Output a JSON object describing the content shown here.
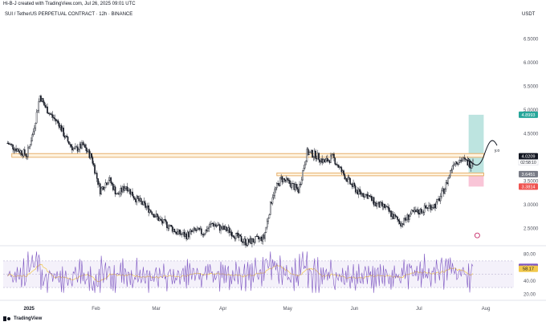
{
  "header": {
    "created_by": "Hi-B-J created with TradingView.com, Jul 26, 2025 09:01 UTC",
    "symbol": "SUI / TetherUS PERPETUAL CONTRACT · 12h · BINANCE",
    "currency": "USDT"
  },
  "footer": {
    "brand": "TradingView"
  },
  "colors": {
    "candle": "#131722",
    "zone_fill": "#fff3e0",
    "zone_border": "#e0a050",
    "target_fill": "#b2dfdb",
    "stop_fill": "#f8bbd0",
    "rsi_line": "#7e57c2",
    "rsi_ma": "#f2c94c",
    "rsi_band": "#ede7f6",
    "price_badge": "#131722",
    "target_badge": "#26a69a",
    "stop_badge": "#ef5350",
    "entry_badge": "#787b86"
  },
  "chart_data": [
    {
      "type": "candlestick",
      "title": "SUI / TetherUS PERPETUAL CONTRACT · 12h · BINANCE",
      "y_unit": "USDT",
      "ylim": [
        2.2,
        6.9
      ],
      "y_ticks": [
        "6.5000",
        "6.0000",
        "5.5000",
        "5.0000",
        "4.5000",
        "3.5000",
        "3.0000",
        "2.5000"
      ],
      "x_ticks": [
        "2025",
        "Feb",
        "Mar",
        "Apr",
        "May",
        "Jun",
        "Jul",
        "Aug"
      ],
      "close_path": [
        [
          "2024-12-22",
          4.3
        ],
        [
          "2024-12-27",
          4.15
        ],
        [
          "2024-12-31",
          4.05
        ],
        [
          "2025-01-03",
          4.55
        ],
        [
          "2025-01-06",
          5.3
        ],
        [
          "2025-01-08",
          5.1
        ],
        [
          "2025-01-11",
          4.9
        ],
        [
          "2025-01-15",
          4.7
        ],
        [
          "2025-01-18",
          4.4
        ],
        [
          "2025-01-22",
          4.15
        ],
        [
          "2025-01-26",
          4.25
        ],
        [
          "2025-01-30",
          4.0
        ],
        [
          "2025-02-03",
          3.3
        ],
        [
          "2025-02-07",
          3.55
        ],
        [
          "2025-02-11",
          3.2
        ],
        [
          "2025-02-15",
          3.4
        ],
        [
          "2025-02-19",
          3.15
        ],
        [
          "2025-02-23",
          3.0
        ],
        [
          "2025-02-27",
          2.85
        ],
        [
          "2025-03-03",
          2.65
        ],
        [
          "2025-03-07",
          2.55
        ],
        [
          "2025-03-11",
          2.4
        ],
        [
          "2025-03-15",
          2.35
        ],
        [
          "2025-03-19",
          2.45
        ],
        [
          "2025-03-23",
          2.4
        ],
        [
          "2025-03-27",
          2.6
        ],
        [
          "2025-03-31",
          2.5
        ],
        [
          "2025-04-04",
          2.45
        ],
        [
          "2025-04-08",
          2.3
        ],
        [
          "2025-04-12",
          2.2
        ],
        [
          "2025-04-16",
          2.25
        ],
        [
          "2025-04-20",
          2.3
        ],
        [
          "2025-04-24",
          3.2
        ],
        [
          "2025-04-28",
          3.55
        ],
        [
          "2025-05-02",
          3.45
        ],
        [
          "2025-05-06",
          3.3
        ],
        [
          "2025-05-10",
          4.1
        ],
        [
          "2025-05-14",
          4.05
        ],
        [
          "2025-05-18",
          3.9
        ],
        [
          "2025-05-22",
          4.0
        ],
        [
          "2025-05-26",
          3.7
        ],
        [
          "2025-05-30",
          3.45
        ],
        [
          "2025-06-03",
          3.25
        ],
        [
          "2025-06-07",
          3.2
        ],
        [
          "2025-06-11",
          3.0
        ],
        [
          "2025-06-15",
          2.95
        ],
        [
          "2025-06-19",
          2.75
        ],
        [
          "2025-06-23",
          2.6
        ],
        [
          "2025-06-27",
          2.8
        ],
        [
          "2025-07-01",
          2.85
        ],
        [
          "2025-07-05",
          2.95
        ],
        [
          "2025-07-09",
          3.0
        ],
        [
          "2025-07-13",
          3.35
        ],
        [
          "2025-07-17",
          3.9
        ],
        [
          "2025-07-21",
          3.95
        ],
        [
          "2025-07-25",
          3.85
        ],
        [
          "2025-07-26",
          3.98
        ]
      ],
      "horizontal_zones": [
        {
          "from": "2024-12-24",
          "to": "2025-07-31",
          "low": 4.0,
          "high": 4.08
        },
        {
          "from": "2025-04-26",
          "to": "2025-07-31",
          "low": 3.61,
          "high": 3.67
        }
      ],
      "position_tool": {
        "entry": 3.6451,
        "target": 4.8993,
        "stop": 3.3814,
        "from": "2025-07-24",
        "to": "2025-07-31"
      },
      "projection_label": "y.o",
      "price_labels": [
        {
          "value": 4.8993,
          "text": "4.8993",
          "kind": "target"
        },
        {
          "value": 4.0209,
          "text": "4.0209",
          "kind": "last",
          "sub": "02:58:10"
        },
        {
          "value": 3.6451,
          "text": "3.6451",
          "kind": "entry"
        },
        {
          "value": 3.3814,
          "text": "3.3814",
          "kind": "stop"
        }
      ]
    },
    {
      "type": "line",
      "title": "RSI",
      "ylim": [
        18,
        88
      ],
      "y_ticks": [
        "80.00",
        "40.00",
        "20.00"
      ],
      "band": [
        30,
        70
      ],
      "last_values": [
        {
          "value": 61.01,
          "text": "61.01",
          "series": "rsi"
        },
        {
          "value": 58.17,
          "text": "58.17",
          "series": "ma"
        }
      ]
    }
  ]
}
